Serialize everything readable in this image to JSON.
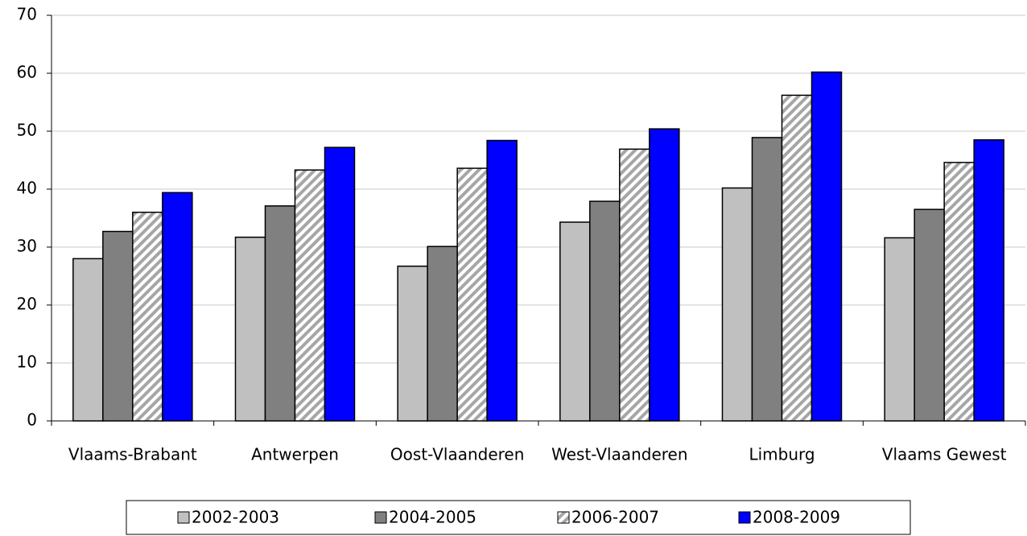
{
  "chart_data": {
    "type": "bar",
    "categories": [
      "Vlaams-Brabant",
      "Antwerpen",
      "Oost-Vlaanderen",
      "West-Vlaanderen",
      "Limburg",
      "Vlaams Gewest"
    ],
    "series": [
      {
        "name": "2002-2003",
        "color": "#c0c0c0",
        "values": [
          28,
          31.7,
          26.7,
          34.3,
          40.2,
          31.6
        ]
      },
      {
        "name": "2004-2005",
        "color": "#808080",
        "values": [
          32.7,
          37.1,
          30.1,
          37.9,
          48.9,
          36.5
        ]
      },
      {
        "name": "2006-2007",
        "color": "#a6a6a6",
        "pattern": "hatch",
        "values": [
          36,
          43.3,
          43.6,
          46.9,
          56.2,
          44.6
        ]
      },
      {
        "name": "2008-2009",
        "color": "#0000ff",
        "values": [
          39.4,
          47.2,
          48.4,
          50.4,
          60.2,
          48.5
        ]
      }
    ],
    "ylim": [
      0,
      70
    ],
    "yticks": [
      0,
      10,
      20,
      30,
      40,
      50,
      60,
      70
    ],
    "grid": true,
    "legend": "bottom"
  }
}
